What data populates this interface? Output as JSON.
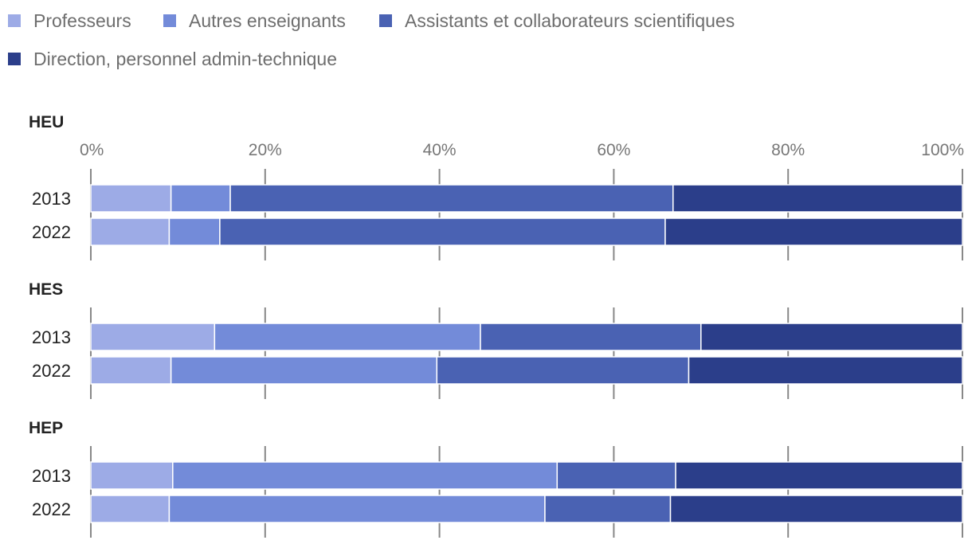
{
  "chart_data": {
    "type": "bar",
    "orientation": "horizontal",
    "stacked": "percent",
    "legend": {
      "position": "top",
      "entries": [
        {
          "name": "Professeurs",
          "color": "#9dabe6"
        },
        {
          "name": "Autres enseignants",
          "color": "#738bd9"
        },
        {
          "name": "Assistants et collaborateurs scientifiques",
          "color": "#4a62b3"
        },
        {
          "name": "Direction, personnel admin-technique",
          "color": "#2b3e8a"
        }
      ]
    },
    "axis": {
      "xlim": [
        0,
        100
      ],
      "ticks": [
        "0%",
        "20%",
        "40%",
        "60%",
        "80%",
        "100%"
      ],
      "tick_values": [
        0,
        20,
        40,
        60,
        80,
        100
      ],
      "grid": true
    },
    "groups": [
      {
        "title": "HEU",
        "show_ticks": true,
        "bars": [
          {
            "label": "2013",
            "values": [
              9.2,
              6.8,
              50.8,
              33.2
            ]
          },
          {
            "label": "2022",
            "values": [
              9.0,
              5.8,
              51.1,
              34.1
            ]
          }
        ]
      },
      {
        "title": "HES",
        "show_ticks": false,
        "bars": [
          {
            "label": "2013",
            "values": [
              14.2,
              30.5,
              25.3,
              30.0
            ]
          },
          {
            "label": "2022",
            "values": [
              9.2,
              30.5,
              28.9,
              31.4
            ]
          }
        ]
      },
      {
        "title": "HEP",
        "show_ticks": false,
        "bars": [
          {
            "label": "2013",
            "values": [
              9.4,
              44.1,
              13.6,
              32.9
            ]
          },
          {
            "label": "2022",
            "values": [
              9.0,
              43.1,
              14.4,
              33.5
            ]
          }
        ]
      }
    ]
  }
}
